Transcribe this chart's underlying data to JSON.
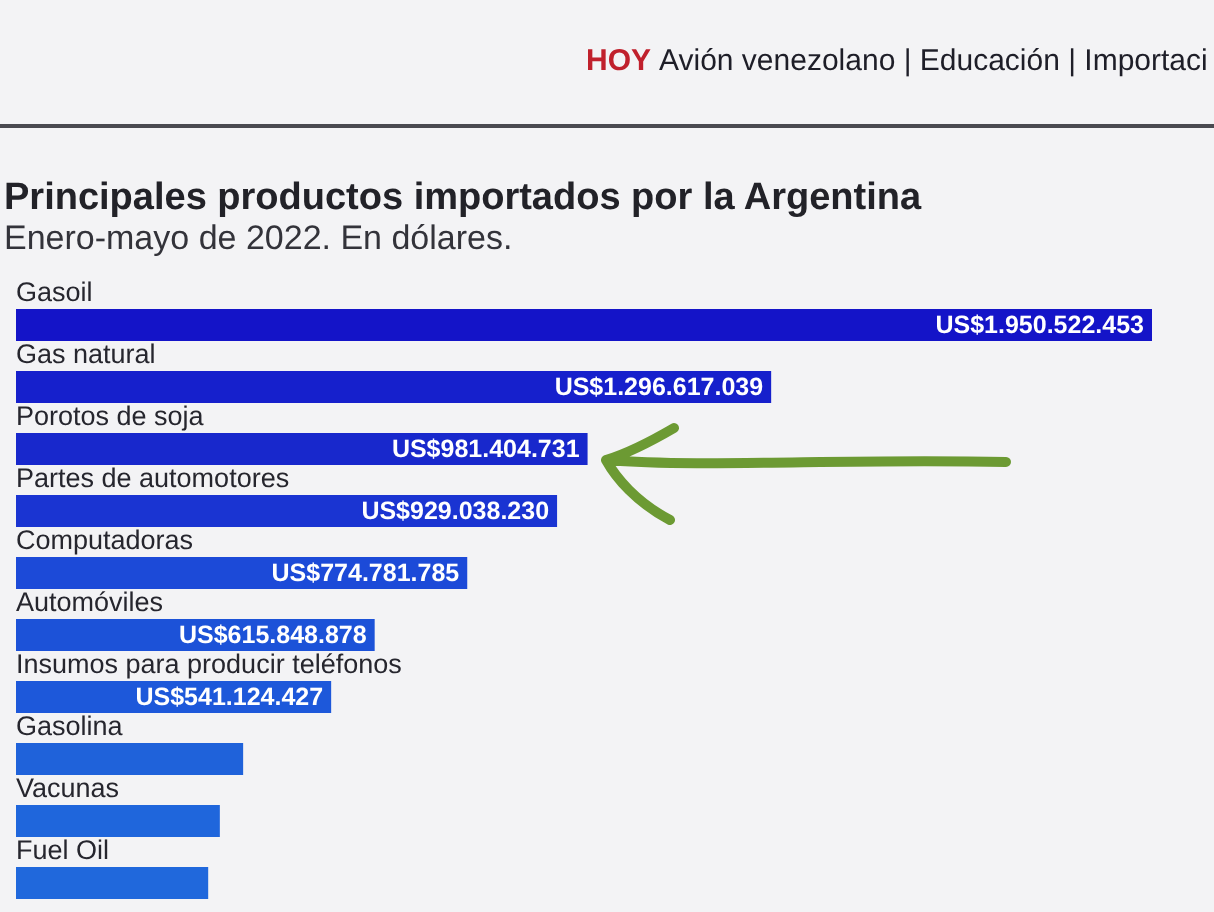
{
  "chart_data": {
    "type": "bar",
    "orientation": "horizontal",
    "title": "Principales productos importados por la Argentina",
    "subtitle": "Enero-mayo de 2022. En dólares.",
    "annotations": [
      "HOY",
      "Avión venezolano | Educación | Importaci"
    ],
    "categories": [
      "Gasoil",
      "Gas natural",
      "Porotos de soja",
      "Partes de automotores",
      "Computadoras",
      "Automóviles",
      "Insumos para producir teléfonos",
      "Gasolina",
      "Vacunas",
      "Fuel Oil"
    ],
    "values": [
      1950522453,
      1296617039,
      981404731,
      929038230,
      774781785,
      615848878,
      541124427,
      390000000,
      350000000,
      330000000
    ],
    "value_labels": [
      "US$1.950.522.453",
      "US$1.296.617.039",
      "US$981.404.731",
      "US$929.038.230",
      "US$774.781.785",
      "US$615.848.878",
      "US$541.124.427",
      null,
      null,
      null
    ],
    "colors": [
      "#1414c8",
      "#1620cc",
      "#1828cc",
      "#1a34d2",
      "#1c4ad8",
      "#1c52d8",
      "#1d58da",
      "#1f62da",
      "#1f66dc",
      "#2068dc"
    ]
  }
}
